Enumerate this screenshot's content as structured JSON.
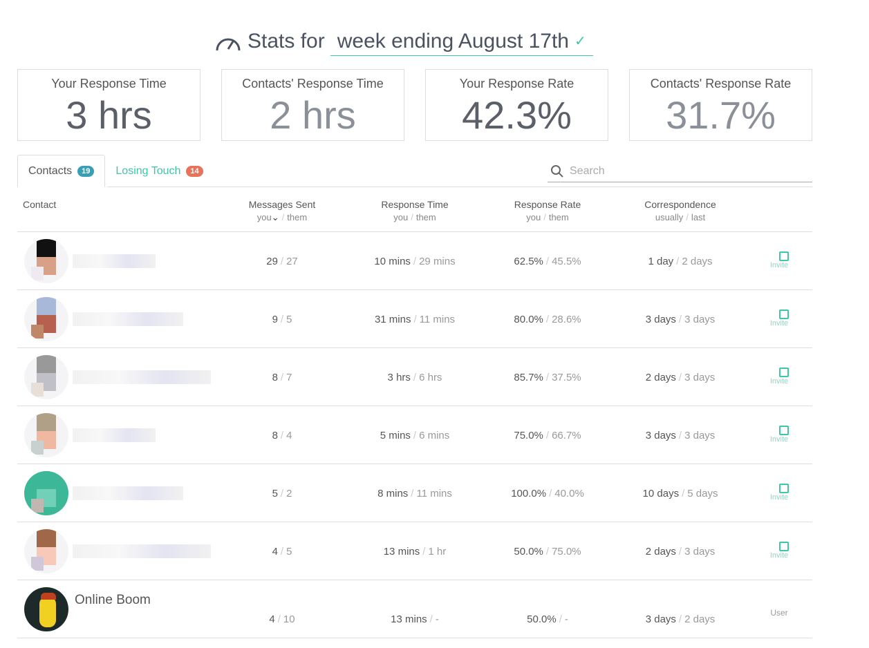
{
  "header": {
    "prefix": "Stats for",
    "period": "week ending August 17th"
  },
  "cards": [
    {
      "label": "Your Response Time",
      "value": "3 hrs"
    },
    {
      "label": "Contacts' Response Time",
      "value": "2 hrs"
    },
    {
      "label": "Your Response Rate",
      "value": "42.3%"
    },
    {
      "label": "Contacts' Response Rate",
      "value": "31.7%"
    }
  ],
  "tabs": [
    {
      "label": "Contacts",
      "count": "19",
      "color": "#3a9fb5"
    },
    {
      "label": "Losing Touch",
      "count": "14",
      "color": "#e8725a"
    }
  ],
  "search": {
    "placeholder": "Search"
  },
  "columns": {
    "contact": "Contact",
    "messages": "Messages Sent",
    "response_time": "Response Time",
    "response_rate": "Response Rate",
    "correspondence": "Correspondence",
    "you": "you",
    "them": "them",
    "usually": "usually",
    "last": "last",
    "sep": "/"
  },
  "rows": [
    {
      "name": "",
      "msg_you": "29",
      "msg_them": "27",
      "rt_you": "10 mins",
      "rt_them": "29 mins",
      "rr_you": "62.5%",
      "rr_them": "45.5%",
      "c_usual": "1 day",
      "c_last": "2 days",
      "action": "Invite"
    },
    {
      "name": "",
      "msg_you": "9",
      "msg_them": "5",
      "rt_you": "31 mins",
      "rt_them": "11 mins",
      "rr_you": "80.0%",
      "rr_them": "28.6%",
      "c_usual": "3 days",
      "c_last": "3 days",
      "action": "Invite"
    },
    {
      "name": "",
      "msg_you": "8",
      "msg_them": "7",
      "rt_you": "3 hrs",
      "rt_them": "6 hrs",
      "rr_you": "85.7%",
      "rr_them": "37.5%",
      "c_usual": "2 days",
      "c_last": "3 days",
      "action": "Invite"
    },
    {
      "name": "",
      "msg_you": "8",
      "msg_them": "4",
      "rt_you": "5 mins",
      "rt_them": "6 mins",
      "rr_you": "75.0%",
      "rr_them": "66.7%",
      "c_usual": "3 days",
      "c_last": "3 days",
      "action": "Invite"
    },
    {
      "name": "",
      "msg_you": "5",
      "msg_them": "2",
      "rt_you": "8 mins",
      "rt_them": "11 mins",
      "rr_you": "100.0%",
      "rr_them": "40.0%",
      "c_usual": "10 days",
      "c_last": "5 days",
      "action": "Invite"
    },
    {
      "name": "",
      "msg_you": "4",
      "msg_them": "5",
      "rt_you": "13 mins",
      "rt_them": "1 hr",
      "rr_you": "50.0%",
      "rr_them": "75.0%",
      "c_usual": "2 days",
      "c_last": "3 days",
      "action": "Invite"
    },
    {
      "name": "Online Boom",
      "msg_you": "4",
      "msg_them": "10",
      "rt_you": "13 mins",
      "rt_them": "-",
      "rr_you": "50.0%",
      "rr_them": "-",
      "c_usual": "3 days",
      "c_last": "2 days",
      "action": "User"
    }
  ]
}
